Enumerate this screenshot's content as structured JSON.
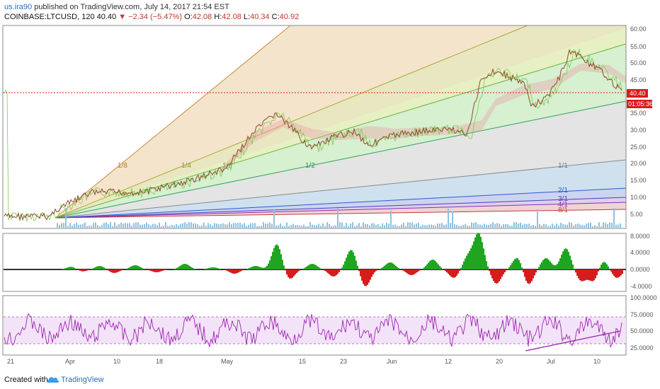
{
  "header": {
    "user": "us.ira90",
    "published_text": " published on TradingView.com, July 14, 2017 21:54 EST",
    "symbol": "COINBASE:LTCUSD, 120",
    "last": "40.40",
    "change": "−2.34 (−5.47%)",
    "ohlc_o_label": "O:",
    "ohlc_o": "42.08",
    "ohlc_h_label": "H:",
    "ohlc_h": "42.08",
    "ohlc_l_label": "L:",
    "ohlc_l": "40.34",
    "ohlc_c_label": "C:",
    "ohlc_c": "40.92"
  },
  "price_axis": [
    "60.00",
    "55.00",
    "50.00",
    "45.00",
    "35.00",
    "30.00",
    "25.00",
    "20.00",
    "15.00",
    "10.00",
    "5.00"
  ],
  "price_tag": "40.40",
  "countdown_tag": "01:05:36",
  "macd_axis": [
    "8.0000",
    "4.0000",
    "0.0000",
    "-4.0000"
  ],
  "rsi_axis": [
    "100.0000",
    "75.0000",
    "50.0000",
    "25.0000"
  ],
  "time_axis": [
    "21",
    "Apr",
    "10",
    "18",
    "May",
    "15",
    "23",
    "Jun",
    "12",
    "20",
    "Jul",
    "10"
  ],
  "fan_labels": [
    "1/8",
    "1/4",
    "1/3",
    "1/2",
    "1/1",
    "2/1",
    "3/1",
    "4/1",
    "8/1"
  ],
  "footer": {
    "created": "Created with",
    "brand": "TradingView"
  },
  "colors": {
    "up": "#26a69a",
    "down": "#ef5350",
    "accent": "#2a6ebd",
    "rsi": "#9c27b0",
    "macd_pos": "#1fa51f",
    "macd_neg": "#d61c1c"
  }
}
